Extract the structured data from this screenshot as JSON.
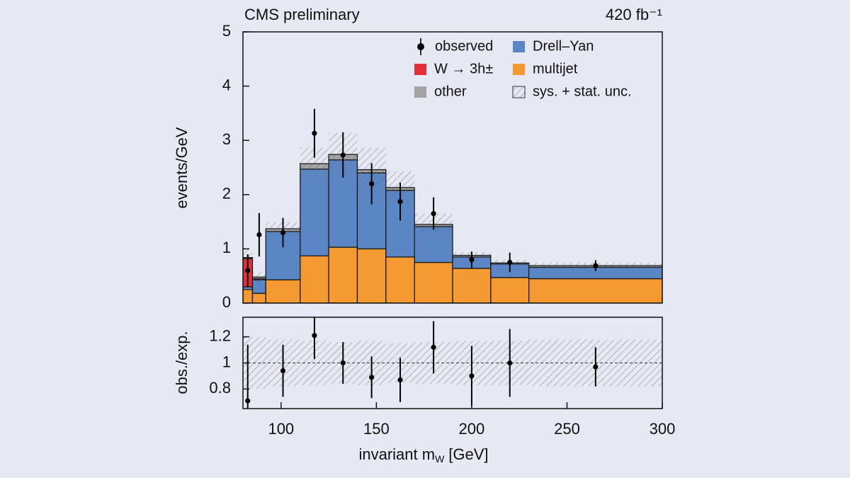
{
  "chart_data": [
    {
      "type": "stacked-histogram",
      "title": "CMS preliminary",
      "luminosity": "420 fb⁻¹",
      "ylabel": "events/GeV",
      "bins": [
        80,
        85,
        92,
        110,
        125,
        140,
        155,
        170,
        190,
        210,
        230,
        300
      ],
      "xlim": [
        80,
        300
      ],
      "ylim": [
        0,
        5
      ],
      "yticks": [
        0,
        1,
        2,
        3,
        4,
        5
      ],
      "series": [
        {
          "name": "multijet",
          "color": "#f59a30",
          "values": [
            0.25,
            0.18,
            0.43,
            0.87,
            1.03,
            1.0,
            0.85,
            0.75,
            0.64,
            0.47,
            0.45
          ]
        },
        {
          "name": "Drell–Yan",
          "color": "#5b86c6",
          "values": [
            0.05,
            0.25,
            0.89,
            1.6,
            1.61,
            1.4,
            1.23,
            0.66,
            0.21,
            0.25,
            0.21
          ]
        },
        {
          "name": "W → 3h±",
          "color": "#e5303c",
          "values": [
            0.52,
            0.02,
            0,
            0,
            0,
            0,
            0,
            0,
            0,
            0,
            0
          ]
        },
        {
          "name": "other",
          "color": "#a3a3a3",
          "values": [
            0.02,
            0.03,
            0.05,
            0.1,
            0.1,
            0.06,
            0.05,
            0.04,
            0.03,
            0.02,
            0.03
          ]
        }
      ],
      "uncertainty": {
        "name": "sys. + stat. unc.",
        "values": [
          0.15,
          0.1,
          0.12,
          0.3,
          0.4,
          0.4,
          0.3,
          0.2,
          0.06,
          0.06,
          0.06
        ]
      },
      "observed": {
        "name": "observed",
        "color": "#000000",
        "x": [
          82.5,
          88.5,
          101,
          117.5,
          132.5,
          147.5,
          162.5,
          180,
          200,
          220,
          265
        ],
        "values": [
          0.6,
          1.26,
          1.3,
          3.13,
          2.73,
          2.2,
          1.87,
          1.65,
          0.8,
          0.75,
          0.69
        ],
        "errors": [
          0.3,
          0.4,
          0.27,
          0.45,
          0.42,
          0.38,
          0.35,
          0.3,
          0.15,
          0.18,
          0.1
        ]
      }
    },
    {
      "type": "ratio",
      "ylabel": "obs./exp.",
      "xlabel": {
        "text": "invariant m",
        "sub": "W",
        "unit": "[GeV]"
      },
      "xlim": [
        80,
        300
      ],
      "xticks": [
        100,
        150,
        200,
        250,
        300
      ],
      "ylim": [
        0.65,
        1.35
      ],
      "yticks": [
        0.8,
        1,
        1.2
      ],
      "reference": 1,
      "bins": [
        80,
        85,
        92,
        110,
        125,
        140,
        155,
        170,
        190,
        210,
        230,
        300
      ],
      "uncertainty": [
        0.2,
        0.2,
        0.18,
        0.17,
        0.16,
        0.17,
        0.15,
        0.16,
        0.17,
        0.17,
        0.18
      ],
      "x": [
        82.5,
        88.5,
        101,
        117.5,
        132.5,
        147.5,
        162.5,
        180,
        200,
        220,
        265
      ],
      "values": [
        0.71,
        null,
        0.94,
        1.21,
        1.0,
        0.89,
        0.87,
        1.12,
        0.9,
        1.0,
        0.97
      ],
      "errors": [
        0.43,
        null,
        0.2,
        0.18,
        0.16,
        0.16,
        0.17,
        0.2,
        0.23,
        0.26,
        0.15
      ]
    }
  ]
}
